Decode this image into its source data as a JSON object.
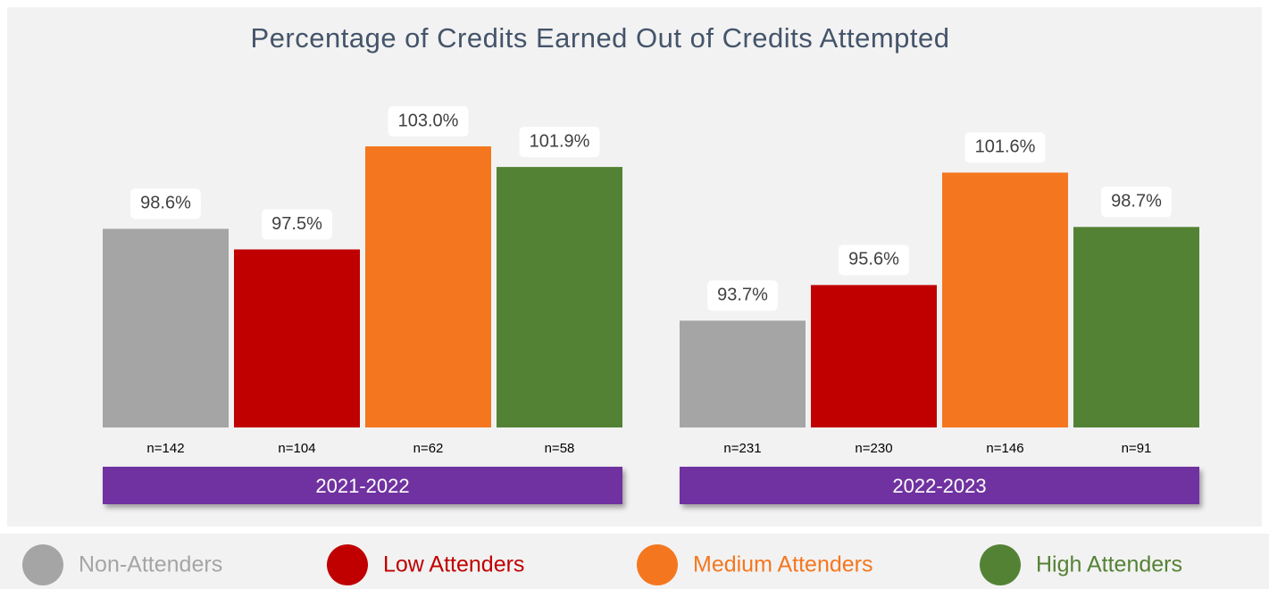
{
  "chart_data": {
    "type": "bar",
    "title": "Percentage of Credits Earned Out of Credits Attempted",
    "categories": [
      "2021-2022",
      "2022-2023"
    ],
    "series": [
      {
        "name": "Non-Attenders",
        "color": "#a5a5a5",
        "values": [
          98.6,
          93.7
        ],
        "value_labels": [
          "98.6%",
          "93.7%"
        ],
        "n_labels": [
          "n=142",
          "n=231"
        ]
      },
      {
        "name": "Low Attenders",
        "color": "#c00000",
        "values": [
          97.5,
          95.6
        ],
        "value_labels": [
          "97.5%",
          "95.6%"
        ],
        "n_labels": [
          "n=104",
          "n=230"
        ]
      },
      {
        "name": "Medium Attenders",
        "color": "#f4771f",
        "values": [
          103.0,
          101.6
        ],
        "value_labels": [
          "103.0%",
          "101.6%"
        ],
        "n_labels": [
          "n=62",
          "n=146"
        ]
      },
      {
        "name": "High Attenders",
        "color": "#548235",
        "values": [
          101.9,
          98.7
        ],
        "value_labels": [
          "101.9%",
          "98.7%"
        ],
        "n_labels": [
          "n=58",
          "n=91"
        ]
      }
    ],
    "ylim": [
      88,
      104
    ],
    "category_color": "#7030a0"
  }
}
